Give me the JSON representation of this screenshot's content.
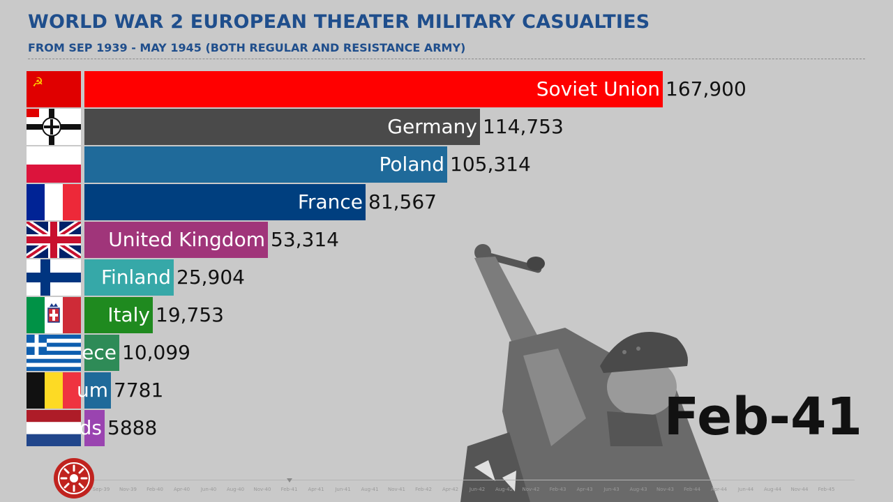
{
  "header": {
    "title": "WORLD WAR 2 EUROPEAN THEATER MILITARY CASUALTIES",
    "subtitle": "FROM SEP 1939 - MAY 1945 (BOTH REGULAR AND RESISTANCE ARMY)"
  },
  "current_date": "Feb-41",
  "chart_data": {
    "type": "bar",
    "orientation": "horizontal",
    "title": "WORLD WAR 2 EUROPEAN THEATER MILITARY CASUALTIES",
    "subtitle": "FROM SEP 1939 - MAY 1945 (BOTH REGULAR AND RESISTANCE ARMY)",
    "xlim": [
      0,
      167900
    ],
    "grid": false,
    "legend": "none",
    "bars": [
      {
        "label": "Soviet Union",
        "shown_label": "Soviet Union",
        "value": 167900,
        "value_text": "167,900",
        "color": "#ff0000",
        "flag": "soviet-union-flag-icon"
      },
      {
        "label": "Germany",
        "shown_label": "Germany",
        "value": 114753,
        "value_text": "114,753",
        "color": "#4a4a4a",
        "flag": "german-war-flag-icon"
      },
      {
        "label": "Poland",
        "shown_label": "Poland",
        "value": 105314,
        "value_text": "105,314",
        "color": "#1f6a9a",
        "flag": "poland-flag-icon"
      },
      {
        "label": "France",
        "shown_label": "France",
        "value": 81567,
        "value_text": "81,567",
        "color": "#003f7f",
        "flag": "france-flag-icon"
      },
      {
        "label": "United Kingdom",
        "shown_label": "United Kingdom",
        "value": 53314,
        "value_text": "53,314",
        "color": "#a0357a",
        "flag": "united-kingdom-flag-icon"
      },
      {
        "label": "Finland",
        "shown_label": "Finland",
        "value": 25904,
        "value_text": "25,904",
        "color": "#36a8a8",
        "flag": "finland-flag-icon"
      },
      {
        "label": "Italy",
        "shown_label": "Italy",
        "value": 19753,
        "value_text": "19,753",
        "color": "#1f8a1f",
        "flag": "italy-kingdom-flag-icon"
      },
      {
        "label": "Greece",
        "shown_label": "ece",
        "value": 10099,
        "value_text": "10,099",
        "color": "#2e8b57",
        "flag": "greece-flag-icon"
      },
      {
        "label": "Belgium",
        "shown_label": "um",
        "value": 7781,
        "value_text": "7781",
        "color": "#1f6a9a",
        "flag": "belgium-flag-icon"
      },
      {
        "label": "Netherlands",
        "shown_label": "ds",
        "value": 5888,
        "value_text": "5888",
        "color": "#9a44b0",
        "flag": "netherlands-flag-icon"
      }
    ]
  },
  "timeline": {
    "ticks": [
      "Sep-39",
      "Nov-39",
      "Feb-40",
      "Apr-40",
      "Jun-40",
      "Aug-40",
      "Nov-40",
      "Feb-41",
      "Apr-41",
      "Jun-41",
      "Aug-41",
      "Nov-41",
      "Feb-42",
      "Apr-42",
      "Jun-42",
      "Aug-42",
      "Nov-42",
      "Feb-43",
      "Apr-43",
      "Jun-43",
      "Aug-43",
      "Nov-43",
      "Feb-44",
      "Apr-44",
      "Jun-44",
      "Aug-44",
      "Nov-44",
      "Feb-45"
    ],
    "current": "Feb-41"
  },
  "icons": {
    "logo": "sun-emblem-logo-icon",
    "illustration": "soldier-throwing-grenade-illustration"
  }
}
